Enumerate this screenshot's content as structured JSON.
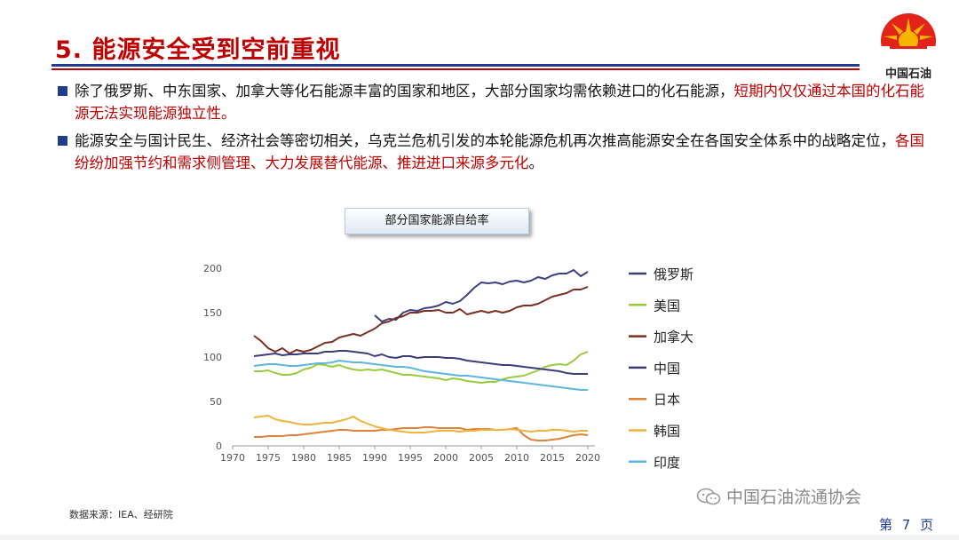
{
  "slide": {
    "title": "5. 能源安全受到空前重视",
    "logo_text": "中国石油",
    "bullets": [
      {
        "text": "除了俄罗斯、中东国家、加拿大等化石能源丰富的国家和地区，大部分国家均需依赖进口的化石能源，",
        "highlight": "短期内仅仅通过本国的化石能源无法实现能源独立性。",
        "tail": ""
      },
      {
        "text": "能源安全与国计民生、经济社会等密切相关，乌克兰危机引发的本轮能源危机再次推高能源安全在各国安全体系中的战略定位，",
        "highlight": "各国纷纷加强节约和需求侧管理、大力发展替代能源、推进进口来源多元化",
        "tail": "。"
      }
    ],
    "source": "数据来源：IEA、经研院",
    "watermark": "中国石油流通协会",
    "page_label": "第 7 页"
  },
  "colors": {
    "title_red": "#c00000",
    "rule_blue": "#1f3d8c",
    "logo_red": "#e2231a",
    "logo_yellow": "#f7b500"
  },
  "chart_data": {
    "type": "line",
    "title": "部分国家能源自给率",
    "xlim": [
      1970,
      2020
    ],
    "ylim": [
      0,
      200
    ],
    "xticks": [
      1970,
      1975,
      1980,
      1985,
      1990,
      1995,
      2000,
      2005,
      2010,
      2015,
      2020
    ],
    "yticks": [
      0,
      50,
      100,
      150,
      200
    ],
    "grid": false,
    "legend_position": "right",
    "series": [
      {
        "name": "俄罗斯",
        "color": "#3a3f7e",
        "x": [
          1990,
          1991,
          1992,
          1993,
          1994,
          1995,
          1996,
          1997,
          1998,
          1999,
          2000,
          2001,
          2002,
          2003,
          2004,
          2005,
          2006,
          2007,
          2008,
          2009,
          2010,
          2011,
          2012,
          2013,
          2014,
          2015,
          2016,
          2017,
          2018,
          2019,
          2020
        ],
        "y": [
          147,
          140,
          143,
          142,
          150,
          153,
          152,
          155,
          156,
          158,
          162,
          160,
          163,
          170,
          178,
          184,
          183,
          184,
          182,
          185,
          186,
          184,
          186,
          190,
          188,
          192,
          194,
          194,
          198,
          191,
          196
        ]
      },
      {
        "name": "美国",
        "color": "#9acb3c",
        "x": [
          1973,
          1974,
          1975,
          1976,
          1977,
          1978,
          1979,
          1980,
          1981,
          1982,
          1983,
          1984,
          1985,
          1986,
          1987,
          1988,
          1989,
          1990,
          1991,
          1992,
          1993,
          1994,
          1995,
          1996,
          1997,
          1998,
          1999,
          2000,
          2001,
          2002,
          2003,
          2004,
          2005,
          2006,
          2007,
          2008,
          2009,
          2010,
          2011,
          2012,
          2013,
          2014,
          2015,
          2016,
          2017,
          2018,
          2019,
          2020
        ],
        "y": [
          84,
          84,
          85,
          82,
          80,
          80,
          82,
          86,
          88,
          92,
          91,
          89,
          91,
          88,
          86,
          85,
          86,
          85,
          86,
          84,
          82,
          80,
          80,
          79,
          78,
          77,
          76,
          74,
          76,
          75,
          73,
          72,
          71,
          72,
          72,
          75,
          77,
          78,
          79,
          82,
          85,
          89,
          91,
          92,
          91,
          96,
          103,
          106
        ]
      },
      {
        "name": "加拿大",
        "color": "#7b2f22",
        "x": [
          1973,
          1974,
          1975,
          1976,
          1977,
          1978,
          1979,
          1980,
          1981,
          1982,
          1983,
          1984,
          1985,
          1986,
          1987,
          1988,
          1989,
          1990,
          1991,
          1992,
          1993,
          1994,
          1995,
          1996,
          1997,
          1998,
          1999,
          2000,
          2001,
          2002,
          2003,
          2004,
          2005,
          2006,
          2007,
          2008,
          2009,
          2010,
          2011,
          2012,
          2013,
          2014,
          2015,
          2016,
          2017,
          2018,
          2019,
          2020
        ],
        "y": [
          124,
          118,
          110,
          106,
          110,
          104,
          108,
          106,
          108,
          112,
          116,
          117,
          122,
          124,
          126,
          124,
          128,
          132,
          138,
          140,
          144,
          146,
          150,
          150,
          152,
          152,
          153,
          150,
          150,
          154,
          148,
          150,
          152,
          150,
          152,
          150,
          152,
          156,
          158,
          158,
          160,
          164,
          168,
          170,
          172,
          176,
          176,
          179
        ]
      },
      {
        "name": "中国",
        "color": "#3c3d7a",
        "x": [
          1973,
          1974,
          1975,
          1976,
          1977,
          1978,
          1979,
          1980,
          1981,
          1982,
          1983,
          1984,
          1985,
          1986,
          1987,
          1988,
          1989,
          1990,
          1991,
          1992,
          1993,
          1994,
          1995,
          1996,
          1997,
          1998,
          1999,
          2000,
          2001,
          2002,
          2003,
          2004,
          2005,
          2006,
          2007,
          2008,
          2009,
          2010,
          2011,
          2012,
          2013,
          2014,
          2015,
          2016,
          2017,
          2018,
          2019,
          2020
        ],
        "y": [
          101,
          102,
          103,
          104,
          102,
          103,
          103,
          104,
          104,
          104,
          106,
          106,
          107,
          107,
          106,
          105,
          104,
          101,
          103,
          100,
          99,
          101,
          101,
          99,
          100,
          100,
          100,
          99,
          99,
          98,
          96,
          95,
          94,
          93,
          92,
          91,
          91,
          90,
          89,
          88,
          87,
          86,
          85,
          84,
          82,
          81,
          81,
          81
        ]
      },
      {
        "name": "日本",
        "color": "#e0813a",
        "x": [
          1973,
          1974,
          1975,
          1976,
          1977,
          1978,
          1979,
          1980,
          1981,
          1982,
          1983,
          1984,
          1985,
          1986,
          1987,
          1988,
          1989,
          1990,
          1991,
          1992,
          1993,
          1994,
          1995,
          1996,
          1997,
          1998,
          1999,
          2000,
          2001,
          2002,
          2003,
          2004,
          2005,
          2006,
          2007,
          2008,
          2009,
          2010,
          2011,
          2012,
          2013,
          2014,
          2015,
          2016,
          2017,
          2018,
          2019,
          2020
        ],
        "y": [
          10,
          10,
          11,
          11,
          11,
          12,
          12,
          13,
          14,
          15,
          16,
          17,
          18,
          18,
          17,
          17,
          17,
          17,
          18,
          18,
          19,
          20,
          20,
          20,
          21,
          21,
          20,
          20,
          20,
          20,
          18,
          19,
          19,
          19,
          18,
          18,
          19,
          20,
          12,
          7,
          6,
          6,
          7,
          8,
          10,
          12,
          13,
          12
        ]
      },
      {
        "name": "韩国",
        "color": "#f0b43c",
        "x": [
          1973,
          1974,
          1975,
          1976,
          1977,
          1978,
          1979,
          1980,
          1981,
          1982,
          1983,
          1984,
          1985,
          1986,
          1987,
          1988,
          1989,
          1990,
          1991,
          1992,
          1993,
          1994,
          1995,
          1996,
          1997,
          1998,
          1999,
          2000,
          2001,
          2002,
          2003,
          2004,
          2005,
          2006,
          2007,
          2008,
          2009,
          2010,
          2011,
          2012,
          2013,
          2014,
          2015,
          2016,
          2017,
          2018,
          2019,
          2020
        ],
        "y": [
          32,
          33,
          34,
          30,
          28,
          27,
          25,
          24,
          24,
          25,
          26,
          26,
          28,
          30,
          33,
          28,
          25,
          22,
          20,
          18,
          17,
          16,
          15,
          15,
          15,
          16,
          17,
          17,
          17,
          16,
          17,
          17,
          18,
          18,
          18,
          18,
          19,
          18,
          17,
          16,
          17,
          17,
          18,
          18,
          17,
          16,
          17,
          17
        ]
      },
      {
        "name": "印度",
        "color": "#5db6e0",
        "x": [
          1973,
          1974,
          1975,
          1976,
          1977,
          1978,
          1979,
          1980,
          1981,
          1982,
          1983,
          1984,
          1985,
          1986,
          1987,
          1988,
          1989,
          1990,
          1991,
          1992,
          1993,
          1994,
          1995,
          1996,
          1997,
          1998,
          1999,
          2000,
          2001,
          2002,
          2003,
          2004,
          2005,
          2006,
          2007,
          2008,
          2009,
          2010,
          2011,
          2012,
          2013,
          2014,
          2015,
          2016,
          2017,
          2018,
          2019,
          2020
        ],
        "y": [
          90,
          91,
          92,
          92,
          91,
          90,
          90,
          91,
          92,
          93,
          93,
          94,
          96,
          95,
          94,
          94,
          93,
          92,
          91,
          90,
          89,
          89,
          88,
          86,
          84,
          83,
          82,
          81,
          80,
          79,
          79,
          78,
          77,
          76,
          75,
          74,
          73,
          72,
          71,
          70,
          69,
          68,
          67,
          66,
          65,
          64,
          63,
          63
        ]
      }
    ]
  }
}
